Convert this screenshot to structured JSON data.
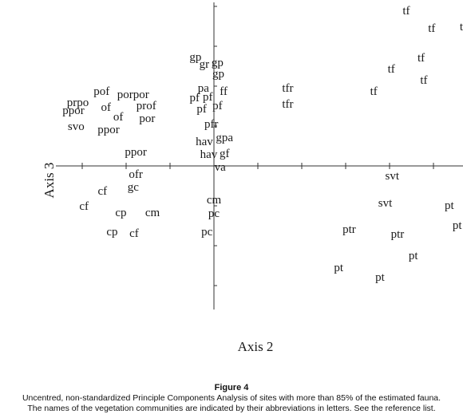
{
  "chart_data": {
    "type": "scatter",
    "xlabel": "Axis 2",
    "ylabel": "Axis 3",
    "grid": false,
    "xlim": [
      -1.8,
      3.5
    ],
    "ylim": [
      -1.8,
      2.05
    ],
    "xticks": [
      -1.5,
      -1.0,
      -0.5,
      0.5,
      1.0,
      1.5,
      2.0,
      2.5,
      3.0
    ],
    "yticks": [
      -1.5,
      -1.0,
      -0.5,
      0.5,
      1.0,
      1.5,
      2.0
    ],
    "points": [
      {
        "label": "tf",
        "x": 2.19,
        "y": 1.94
      },
      {
        "label": "tf",
        "x": 2.48,
        "y": 1.72
      },
      {
        "label": "tf",
        "x": 2.84,
        "y": 1.74
      },
      {
        "label": "tf",
        "x": 2.36,
        "y": 1.35
      },
      {
        "label": "tf",
        "x": 2.02,
        "y": 1.21
      },
      {
        "label": "tf",
        "x": 2.39,
        "y": 1.07
      },
      {
        "label": "tf",
        "x": 1.82,
        "y": 0.93
      },
      {
        "label": "tfr",
        "x": 0.84,
        "y": 0.97
      },
      {
        "label": "tfr",
        "x": 0.84,
        "y": 0.77
      },
      {
        "label": "gp",
        "x": -0.21,
        "y": 1.36
      },
      {
        "label": "gr",
        "x": -0.11,
        "y": 1.27
      },
      {
        "label": "gp",
        "x": 0.04,
        "y": 1.29
      },
      {
        "label": "gp",
        "x": 0.05,
        "y": 1.15
      },
      {
        "label": "pa",
        "x": -0.12,
        "y": 0.97
      },
      {
        "label": "ff",
        "x": 0.11,
        "y": 0.93
      },
      {
        "label": "pf",
        "x": -0.22,
        "y": 0.85
      },
      {
        "label": "pf",
        "x": -0.07,
        "y": 0.86
      },
      {
        "label": "pf",
        "x": -0.14,
        "y": 0.71
      },
      {
        "label": "pf",
        "x": 0.04,
        "y": 0.75
      },
      {
        "label": "pfr",
        "x": -0.03,
        "y": 0.52
      },
      {
        "label": "hav",
        "x": -0.11,
        "y": 0.3
      },
      {
        "label": "gpa",
        "x": 0.12,
        "y": 0.35
      },
      {
        "label": "hav",
        "x": -0.06,
        "y": 0.14
      },
      {
        "label": "gf",
        "x": 0.12,
        "y": 0.15
      },
      {
        "label": "va",
        "x": 0.07,
        "y": -0.02
      },
      {
        "label": "pof",
        "x": -1.28,
        "y": 0.93
      },
      {
        "label": "porpor",
        "x": -0.92,
        "y": 0.89
      },
      {
        "label": "prpo",
        "x": -1.55,
        "y": 0.79
      },
      {
        "label": "ppor",
        "x": -1.6,
        "y": 0.69
      },
      {
        "label": "of",
        "x": -1.23,
        "y": 0.73
      },
      {
        "label": "prof",
        "x": -0.77,
        "y": 0.75
      },
      {
        "label": "of",
        "x": -1.09,
        "y": 0.61
      },
      {
        "label": "por",
        "x": -0.76,
        "y": 0.59
      },
      {
        "label": "svo",
        "x": -1.57,
        "y": 0.49
      },
      {
        "label": "ppor",
        "x": -1.2,
        "y": 0.45
      },
      {
        "label": "ppor",
        "x": -0.89,
        "y": 0.17
      },
      {
        "label": "ofr",
        "x": -0.89,
        "y": -0.11
      },
      {
        "label": "cf",
        "x": -1.27,
        "y": -0.32
      },
      {
        "label": "gc",
        "x": -0.92,
        "y": -0.27
      },
      {
        "label": "cf",
        "x": -1.48,
        "y": -0.51
      },
      {
        "label": "cp",
        "x": -1.06,
        "y": -0.59
      },
      {
        "label": "cm",
        "x": -0.7,
        "y": -0.59
      },
      {
        "label": "cp",
        "x": -1.16,
        "y": -0.83
      },
      {
        "label": "cf",
        "x": -0.91,
        "y": -0.85
      },
      {
        "label": "cm",
        "x": 0.0,
        "y": -0.43
      },
      {
        "label": "pc",
        "x": 0.0,
        "y": -0.6
      },
      {
        "label": "pc",
        "x": -0.08,
        "y": -0.83
      },
      {
        "label": "svt",
        "x": 2.03,
        "y": -0.13
      },
      {
        "label": "svt",
        "x": 1.95,
        "y": -0.47
      },
      {
        "label": "pt",
        "x": 2.68,
        "y": -0.5
      },
      {
        "label": "pt",
        "x": 2.77,
        "y": -0.75
      },
      {
        "label": "ptr",
        "x": 1.54,
        "y": -0.8
      },
      {
        "label": "ptr",
        "x": 2.09,
        "y": -0.86
      },
      {
        "label": "pt",
        "x": 2.27,
        "y": -1.13
      },
      {
        "label": "pt",
        "x": 1.42,
        "y": -1.28
      },
      {
        "label": "pt",
        "x": 1.89,
        "y": -1.4
      }
    ]
  },
  "caption": {
    "figure_label": "Figure 4",
    "line1": "Uncentred, non-standardized Principle Components Analysis of sites with more than 85% of the estimated fauna.",
    "line2": "The names of the vegetation communities are indicated by their abbreviations in letters. See the reference list."
  }
}
